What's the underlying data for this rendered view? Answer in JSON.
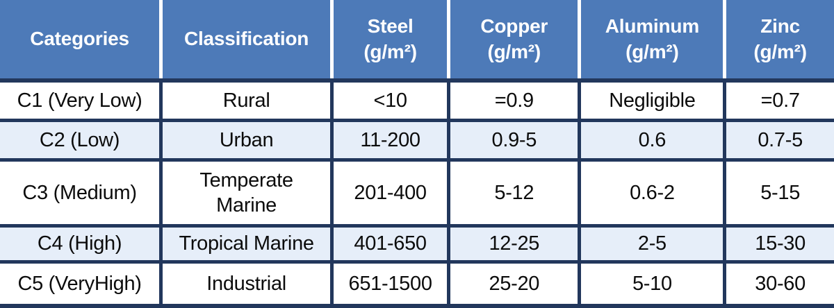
{
  "colors": {
    "header_bg": "#4d7ab8",
    "header_text": "#ffffff",
    "header_divider": "#ffffff",
    "border_navy": "#22375c",
    "row_bg": "#ffffff",
    "row_alt_bg": "#e6eef9",
    "body_text": "#0c0c0c"
  },
  "chart_data": {
    "type": "table",
    "columns": [
      {
        "label": "Categories",
        "unit": ""
      },
      {
        "label": "Classification",
        "unit": ""
      },
      {
        "label": "Steel",
        "unit": "(g/m²)"
      },
      {
        "label": "Copper",
        "unit": "(g/m²)"
      },
      {
        "label": "Aluminum",
        "unit": "(g/m²)"
      },
      {
        "label": "Zinc",
        "unit": "(g/m²)"
      }
    ],
    "rows": [
      [
        "C1 (Very Low)",
        "Rural",
        "<10",
        "=0.9",
        "Negligible",
        "=0.7"
      ],
      [
        "C2 (Low)",
        "Urban",
        "11-200",
        "0.9-5",
        "0.6",
        "0.7-5"
      ],
      [
        "C3 (Medium)",
        "Temperate\nMarine",
        "201-400",
        "5-12",
        "0.6-2",
        "5-15"
      ],
      [
        "C4 (High)",
        "Tropical Marine",
        "401-650",
        "12-25",
        "2-5",
        "15-30"
      ],
      [
        "C5 (VeryHigh)",
        "Industrial",
        "651-1500",
        "25-20",
        "5-10",
        "30-60"
      ]
    ],
    "alt_row_indexes": [
      1,
      3
    ],
    "legend_position": "none",
    "grid": "on"
  }
}
